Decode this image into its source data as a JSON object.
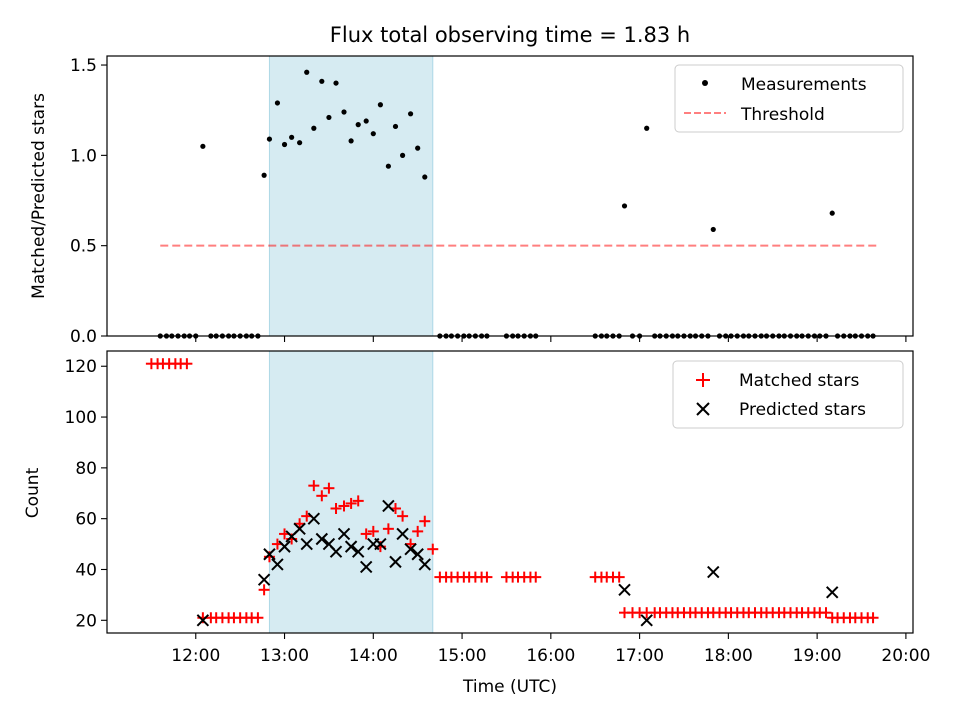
{
  "title": "Flux total observing time = 1.83 h",
  "colors": {
    "highlight": "#add8e6",
    "threshold": "#ff0000",
    "measurement": "#000000",
    "matched": "#ff0000",
    "predicted": "#000000"
  },
  "chart_data": [
    {
      "type": "scatter",
      "ylabel": "Matched/Predicted stars",
      "ylim": [
        0,
        1.55
      ],
      "yticks": [
        0.0,
        0.5,
        1.0,
        1.5
      ],
      "ytick_labels": [
        "0.0",
        "0.5",
        "1.0",
        "1.5"
      ],
      "legend_position": "top-right",
      "highlight_span_hours": [
        12.83,
        14.67
      ],
      "threshold": {
        "name": "Threshold",
        "style": "dashed",
        "y": 0.5,
        "x_range_hours": [
          11.6,
          19.67
        ]
      },
      "series": [
        {
          "name": "Measurements",
          "marker": "dot",
          "points": [
            [
              11.6,
              0
            ],
            [
              11.67,
              0
            ],
            [
              11.73,
              0
            ],
            [
              11.8,
              0
            ],
            [
              11.87,
              0
            ],
            [
              11.93,
              0
            ],
            [
              12.0,
              0
            ],
            [
              12.08,
              1.05
            ],
            [
              12.17,
              0
            ],
            [
              12.23,
              0
            ],
            [
              12.3,
              0
            ],
            [
              12.37,
              0
            ],
            [
              12.43,
              0
            ],
            [
              12.5,
              0
            ],
            [
              12.57,
              0
            ],
            [
              12.63,
              0
            ],
            [
              12.7,
              0
            ],
            [
              12.77,
              0.89
            ],
            [
              12.83,
              1.09
            ],
            [
              12.92,
              1.29
            ],
            [
              13.0,
              1.06
            ],
            [
              13.08,
              1.1
            ],
            [
              13.17,
              1.07
            ],
            [
              13.25,
              1.46
            ],
            [
              13.33,
              1.15
            ],
            [
              13.42,
              1.41
            ],
            [
              13.5,
              1.21
            ],
            [
              13.58,
              1.4
            ],
            [
              13.67,
              1.24
            ],
            [
              13.75,
              1.08
            ],
            [
              13.83,
              1.17
            ],
            [
              13.92,
              1.19
            ],
            [
              14.0,
              1.12
            ],
            [
              14.08,
              1.28
            ],
            [
              14.17,
              0.94
            ],
            [
              14.25,
              1.16
            ],
            [
              14.33,
              1.0
            ],
            [
              14.42,
              1.23
            ],
            [
              14.5,
              1.04
            ],
            [
              14.58,
              0.88
            ],
            [
              14.75,
              0
            ],
            [
              14.82,
              0
            ],
            [
              14.88,
              0
            ],
            [
              14.95,
              0
            ],
            [
              15.02,
              0
            ],
            [
              15.08,
              0
            ],
            [
              15.15,
              0
            ],
            [
              15.22,
              0
            ],
            [
              15.28,
              0
            ],
            [
              15.5,
              0
            ],
            [
              15.57,
              0
            ],
            [
              15.63,
              0
            ],
            [
              15.7,
              0
            ],
            [
              15.77,
              0
            ],
            [
              15.83,
              0
            ],
            [
              16.5,
              0
            ],
            [
              16.57,
              0
            ],
            [
              16.63,
              0
            ],
            [
              16.7,
              0
            ],
            [
              16.77,
              0
            ],
            [
              16.83,
              0.72
            ],
            [
              16.92,
              0
            ],
            [
              17.0,
              0
            ],
            [
              17.08,
              1.15
            ],
            [
              17.17,
              0
            ],
            [
              17.23,
              0
            ],
            [
              17.3,
              0
            ],
            [
              17.37,
              0
            ],
            [
              17.43,
              0
            ],
            [
              17.5,
              0
            ],
            [
              17.57,
              0
            ],
            [
              17.63,
              0
            ],
            [
              17.7,
              0
            ],
            [
              17.77,
              0
            ],
            [
              17.83,
              0.59
            ],
            [
              17.9,
              0
            ],
            [
              17.97,
              0
            ],
            [
              18.03,
              0
            ],
            [
              18.1,
              0
            ],
            [
              18.17,
              0
            ],
            [
              18.23,
              0
            ],
            [
              18.3,
              0
            ],
            [
              18.37,
              0
            ],
            [
              18.43,
              0
            ],
            [
              18.5,
              0
            ],
            [
              18.57,
              0
            ],
            [
              18.63,
              0
            ],
            [
              18.7,
              0
            ],
            [
              18.77,
              0
            ],
            [
              18.83,
              0
            ],
            [
              18.9,
              0
            ],
            [
              18.97,
              0
            ],
            [
              19.03,
              0
            ],
            [
              19.1,
              0
            ],
            [
              19.17,
              0.68
            ],
            [
              19.23,
              0
            ],
            [
              19.3,
              0
            ],
            [
              19.37,
              0
            ],
            [
              19.43,
              0
            ],
            [
              19.5,
              0
            ],
            [
              19.57,
              0
            ],
            [
              19.63,
              0
            ]
          ]
        }
      ]
    },
    {
      "type": "scatter",
      "xlabel": "Time (UTC)",
      "ylabel": "Count",
      "xlim_hours": [
        11.0,
        20.08
      ],
      "ylim": [
        15,
        126
      ],
      "yticks": [
        20,
        40,
        60,
        80,
        100,
        120
      ],
      "ytick_labels": [
        "20",
        "40",
        "60",
        "80",
        "100",
        "120"
      ],
      "xticks_hours": [
        12,
        13,
        14,
        15,
        16,
        17,
        18,
        19,
        20
      ],
      "xtick_labels": [
        "12:00",
        "13:00",
        "14:00",
        "15:00",
        "16:00",
        "17:00",
        "18:00",
        "19:00",
        "20:00"
      ],
      "legend_position": "top-right",
      "highlight_span_hours": [
        12.83,
        14.67
      ],
      "series": [
        {
          "name": "Matched stars",
          "marker": "plus",
          "points": [
            [
              11.5,
              121
            ],
            [
              11.57,
              121
            ],
            [
              11.63,
              121
            ],
            [
              11.7,
              121
            ],
            [
              11.77,
              121
            ],
            [
              11.83,
              121
            ],
            [
              11.9,
              121
            ],
            [
              12.08,
              21
            ],
            [
              12.17,
              21
            ],
            [
              12.23,
              21
            ],
            [
              12.3,
              21
            ],
            [
              12.37,
              21
            ],
            [
              12.43,
              21
            ],
            [
              12.5,
              21
            ],
            [
              12.57,
              21
            ],
            [
              12.63,
              21
            ],
            [
              12.7,
              21
            ],
            [
              12.77,
              32
            ],
            [
              12.83,
              45
            ],
            [
              12.92,
              50
            ],
            [
              13.0,
              54
            ],
            [
              13.08,
              52
            ],
            [
              13.17,
              58
            ],
            [
              13.25,
              61
            ],
            [
              13.33,
              73
            ],
            [
              13.42,
              69
            ],
            [
              13.5,
              72
            ],
            [
              13.58,
              64
            ],
            [
              13.67,
              65
            ],
            [
              13.75,
              66
            ],
            [
              13.83,
              67
            ],
            [
              13.92,
              54
            ],
            [
              14.0,
              55
            ],
            [
              14.08,
              49
            ],
            [
              14.17,
              56
            ],
            [
              14.25,
              64
            ],
            [
              14.33,
              61
            ],
            [
              14.42,
              50
            ],
            [
              14.5,
              55
            ],
            [
              14.58,
              59
            ],
            [
              14.67,
              48
            ],
            [
              14.75,
              37
            ],
            [
              14.82,
              37
            ],
            [
              14.88,
              37
            ],
            [
              14.95,
              37
            ],
            [
              15.02,
              37
            ],
            [
              15.08,
              37
            ],
            [
              15.15,
              37
            ],
            [
              15.22,
              37
            ],
            [
              15.28,
              37
            ],
            [
              15.5,
              37
            ],
            [
              15.57,
              37
            ],
            [
              15.63,
              37
            ],
            [
              15.7,
              37
            ],
            [
              15.77,
              37
            ],
            [
              15.83,
              37
            ],
            [
              16.5,
              37
            ],
            [
              16.57,
              37
            ],
            [
              16.63,
              37
            ],
            [
              16.7,
              37
            ],
            [
              16.77,
              37
            ],
            [
              16.83,
              23
            ],
            [
              16.92,
              23
            ],
            [
              17.0,
              23
            ],
            [
              17.08,
              23
            ],
            [
              17.17,
              23
            ],
            [
              17.23,
              23
            ],
            [
              17.3,
              23
            ],
            [
              17.37,
              23
            ],
            [
              17.43,
              23
            ],
            [
              17.5,
              23
            ],
            [
              17.57,
              23
            ],
            [
              17.63,
              23
            ],
            [
              17.7,
              23
            ],
            [
              17.77,
              23
            ],
            [
              17.83,
              23
            ],
            [
              17.9,
              23
            ],
            [
              17.97,
              23
            ],
            [
              18.03,
              23
            ],
            [
              18.1,
              23
            ],
            [
              18.17,
              23
            ],
            [
              18.23,
              23
            ],
            [
              18.3,
              23
            ],
            [
              18.37,
              23
            ],
            [
              18.43,
              23
            ],
            [
              18.5,
              23
            ],
            [
              18.57,
              23
            ],
            [
              18.63,
              23
            ],
            [
              18.7,
              23
            ],
            [
              18.77,
              23
            ],
            [
              18.83,
              23
            ],
            [
              18.9,
              23
            ],
            [
              18.97,
              23
            ],
            [
              19.03,
              23
            ],
            [
              19.1,
              23
            ],
            [
              19.17,
              21
            ],
            [
              19.23,
              21
            ],
            [
              19.3,
              21
            ],
            [
              19.37,
              21
            ],
            [
              19.43,
              21
            ],
            [
              19.5,
              21
            ],
            [
              19.57,
              21
            ],
            [
              19.63,
              21
            ]
          ]
        },
        {
          "name": "Predicted stars",
          "marker": "x",
          "points": [
            [
              12.08,
              20
            ],
            [
              12.77,
              36
            ],
            [
              12.83,
              46
            ],
            [
              12.92,
              42
            ],
            [
              13.0,
              49
            ],
            [
              13.08,
              53
            ],
            [
              13.17,
              56
            ],
            [
              13.25,
              50
            ],
            [
              13.33,
              60
            ],
            [
              13.42,
              52
            ],
            [
              13.5,
              50
            ],
            [
              13.58,
              47
            ],
            [
              13.67,
              54
            ],
            [
              13.75,
              49
            ],
            [
              13.83,
              47
            ],
            [
              13.92,
              41
            ],
            [
              14.0,
              50
            ],
            [
              14.08,
              50
            ],
            [
              14.17,
              65
            ],
            [
              14.25,
              43
            ],
            [
              14.33,
              54
            ],
            [
              14.42,
              48
            ],
            [
              14.5,
              46
            ],
            [
              14.58,
              42
            ],
            [
              16.83,
              32
            ],
            [
              17.08,
              20
            ],
            [
              17.83,
              39
            ],
            [
              19.17,
              31
            ]
          ]
        }
      ]
    }
  ]
}
